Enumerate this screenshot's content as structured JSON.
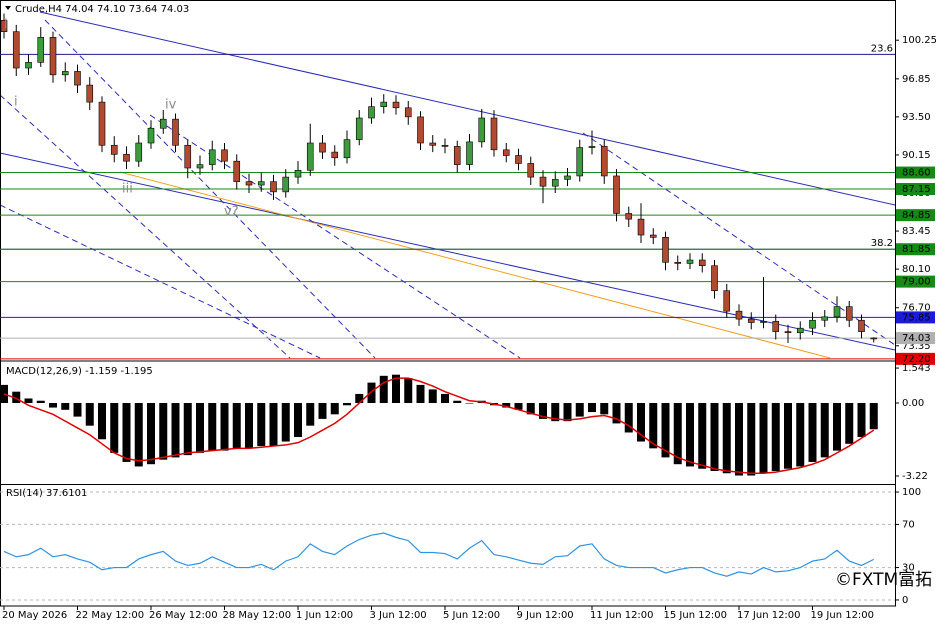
{
  "chart_data": [
    {
      "type": "candlestick",
      "title": "Crude,H4  74.04 74.10 73.64 74.03",
      "up_color": "#3c9c3c",
      "down_color": "#b04a30",
      "open": [
        102,
        101,
        97.8,
        98.3,
        100.5,
        97.2,
        97.5,
        96.3,
        94.8,
        91,
        90.2,
        89.6,
        91.2,
        92.5,
        93.3,
        91,
        89,
        89.3,
        90.6,
        89.6,
        87.8,
        87.5,
        87.8,
        86.9,
        88.2,
        88.8,
        91.2,
        90.4,
        89.9,
        91.5,
        93.4,
        94.4,
        94.8,
        94.3,
        93.5,
        91.2,
        91,
        90.9,
        89.3,
        91.3,
        93.4,
        90.6,
        90.1,
        89.4,
        88.2,
        87.4,
        88,
        88.3,
        90.8,
        90.9,
        88.3,
        85,
        84.5,
        83.1,
        82.9,
        80.7,
        80.6,
        80.9,
        80.4,
        78.2,
        76.4,
        75.7,
        75.4,
        75.5,
        74.6,
        74.5,
        74.9,
        75.6,
        75.9,
        76.8,
        75.6,
        74.04
      ],
      "high": [
        102.6,
        101.6,
        99,
        101.4,
        101,
        98.3,
        98.1,
        97,
        95.3,
        91.8,
        90.9,
        91.9,
        93.2,
        94.1,
        93.8,
        91.5,
        90.1,
        91.4,
        91.2,
        90.2,
        88.5,
        88.6,
        88.4,
        88.9,
        89.6,
        92.9,
        91.9,
        91,
        92.3,
        94.1,
        95.2,
        95.5,
        95.4,
        94.9,
        94,
        91.9,
        91.6,
        91.4,
        92,
        94.2,
        94.1,
        91.2,
        90.7,
        90,
        88.8,
        88.7,
        89,
        91.5,
        92.3,
        91.5,
        88.9,
        85.6,
        85.9,
        83.7,
        83.4,
        81.3,
        81.5,
        81.5,
        80.9,
        78.8,
        77,
        76.3,
        79.4,
        76.1,
        75.2,
        75.5,
        76.3,
        76.5,
        77.7,
        77.3,
        76.1,
        74.1
      ],
      "low": [
        100.4,
        97.1,
        97.2,
        97.9,
        96.5,
        96.6,
        95.6,
        94.1,
        90.4,
        89.5,
        88.9,
        89.1,
        90.7,
        92,
        90.4,
        88.1,
        88.4,
        88.8,
        88.9,
        87.1,
        86.8,
        86.9,
        86.2,
        86.4,
        87.6,
        88.3,
        89.8,
        89.2,
        89.4,
        91,
        92.9,
        93.8,
        93.7,
        92.8,
        90.6,
        90.4,
        90.3,
        88.6,
        88.8,
        90.8,
        90,
        89.5,
        88.8,
        87.5,
        85.9,
        86.8,
        87.4,
        87.8,
        90.2,
        87.6,
        84.3,
        83.8,
        82.4,
        82.3,
        80,
        80,
        80.1,
        79.8,
        77.5,
        75.8,
        75.1,
        74.8,
        74.9,
        73.9,
        73.6,
        73.9,
        74.3,
        75,
        75.4,
        75,
        74,
        73.64
      ],
      "close": [
        101,
        97.8,
        98.3,
        100.5,
        97.2,
        97.5,
        96.3,
        94.8,
        91,
        90.2,
        89.6,
        91.2,
        92.5,
        93.3,
        91,
        89,
        89.3,
        90.6,
        89.6,
        87.8,
        87.5,
        87.8,
        86.9,
        88.2,
        88.8,
        91.2,
        90.4,
        89.9,
        91.5,
        93.4,
        94.4,
        94.8,
        94.3,
        93.5,
        91.2,
        91,
        90.9,
        89.3,
        91.3,
        93.4,
        90.6,
        90.1,
        89.4,
        88.2,
        87.4,
        88,
        88.3,
        90.8,
        90.9,
        88.3,
        85,
        84.5,
        83.1,
        82.9,
        80.7,
        80.6,
        80.9,
        80.4,
        78.2,
        76.4,
        75.7,
        75.4,
        75.5,
        74.6,
        74.5,
        74.9,
        75.6,
        75.9,
        76.8,
        75.6,
        74.6,
        74.03
      ],
      "ylim": [
        72.1,
        103.7
      ],
      "yticks": [
        100.25,
        96.85,
        {
          "value": 93.5,
          "label": "93.50"
        },
        90.15,
        {
          "value": 86.8,
          "label": "86.80"
        },
        83.45,
        {
          "value": 80.1,
          "label": "80.10"
        },
        {
          "value": 76.7,
          "label": "76.70"
        },
        73.35
      ],
      "fib_levels": [
        {
          "value": 99.0,
          "label": "23.6",
          "color": "#1c1c8c"
        },
        {
          "value": 81.85,
          "label": "38.2",
          "color": "#1c1c8c"
        }
      ],
      "levels": [
        {
          "value": 88.6,
          "label": "88.60",
          "color": "#168a16"
        },
        {
          "value": 87.15,
          "label": "87.15",
          "color": "#168a16"
        },
        {
          "value": 84.85,
          "label": "84.85",
          "color": "#168a16"
        },
        {
          "value": 81.85,
          "label": "81.85",
          "color": "#168a16"
        },
        {
          "value": 79.0,
          "label": "79.00",
          "color": "#168a16"
        },
        {
          "value": 75.85,
          "label": "75.85",
          "color": "#1c1cd6"
        },
        {
          "value": 74.03,
          "label": "74.03",
          "color": "#b0b0b0",
          "label_color": "#000000"
        },
        {
          "value": 72.2,
          "label": "72.20",
          "color": "#e00000"
        }
      ],
      "annotations": [
        "I",
        "i",
        "iv",
        "iii",
        "v?"
      ],
      "xticks": [
        {
          "value": 0,
          "label": "20 May 2026"
        },
        {
          "value": 6,
          "label": "22 May 12:00"
        },
        {
          "value": 12,
          "label": "26 May 12:00"
        },
        {
          "value": 18,
          "label": "28 May 12:00"
        },
        {
          "value": 24,
          "label": "1 Jun 12:00"
        },
        {
          "value": 30,
          "label": "3 Jun 12:00"
        },
        {
          "value": 36,
          "label": "5 Jun 12:00"
        },
        {
          "value": 42,
          "label": "9 Jun 12:00"
        },
        {
          "value": 48,
          "label": "11 Jun 12:00"
        },
        {
          "value": 54,
          "label": "15 Jun 12:00"
        },
        {
          "value": 60,
          "label": "17 Jun 12:00"
        },
        {
          "value": 66,
          "label": "19 Jun 12:00"
        }
      ]
    },
    {
      "type": "macd",
      "title": "MACD(12,26,9) -1.159 -1.195",
      "color": "#000000",
      "signal_color": "#e00000",
      "values": [
        0.8,
        0.5,
        0.2,
        0.1,
        -0.2,
        -0.3,
        -0.6,
        -1.0,
        -1.6,
        -2.2,
        -2.6,
        -2.8,
        -2.7,
        -2.5,
        -2.4,
        -2.3,
        -2.2,
        -2.1,
        -2.1,
        -2.0,
        -2.0,
        -1.9,
        -1.9,
        -1.7,
        -1.5,
        -1.0,
        -0.7,
        -0.5,
        -0.1,
        0.4,
        0.9,
        1.2,
        1.25,
        1.1,
        0.8,
        0.6,
        0.4,
        0.1,
        0.0,
        0.1,
        -0.1,
        -0.2,
        -0.3,
        -0.5,
        -0.7,
        -0.8,
        -0.8,
        -0.6,
        -0.4,
        -0.5,
        -0.9,
        -1.3,
        -1.7,
        -2.0,
        -2.4,
        -2.7,
        -2.8,
        -2.9,
        -3.0,
        -3.1,
        -3.2,
        -3.2,
        -3.1,
        -3.0,
        -2.9,
        -2.8,
        -2.6,
        -2.4,
        -2.1,
        -1.8,
        -1.5,
        -1.159
      ],
      "signal_values": [
        0.4,
        0.2,
        -0.1,
        -0.3,
        -0.5,
        -0.8,
        -1.1,
        -1.4,
        -1.8,
        -2.2,
        -2.45,
        -2.55,
        -2.5,
        -2.4,
        -2.3,
        -2.2,
        -2.15,
        -2.1,
        -2.05,
        -2.0,
        -2.0,
        -1.95,
        -1.9,
        -1.85,
        -1.75,
        -1.5,
        -1.2,
        -0.9,
        -0.5,
        0.0,
        0.5,
        0.9,
        1.1,
        1.1,
        0.95,
        0.75,
        0.5,
        0.3,
        0.1,
        0.05,
        -0.05,
        -0.15,
        -0.3,
        -0.45,
        -0.6,
        -0.7,
        -0.75,
        -0.7,
        -0.6,
        -0.55,
        -0.7,
        -1.0,
        -1.4,
        -1.8,
        -2.1,
        -2.4,
        -2.6,
        -2.75,
        -2.9,
        -3.0,
        -3.05,
        -3.1,
        -3.1,
        -3.05,
        -2.95,
        -2.85,
        -2.7,
        -2.5,
        -2.2,
        -1.9,
        -1.55,
        -1.195
      ],
      "ylim": [
        -3.53,
        1.81
      ],
      "yticks": [
        1.543,
        {
          "value": 0,
          "label": "0.00"
        },
        -3.22
      ]
    },
    {
      "type": "line",
      "title": "RSI(14) 37.6101",
      "color": "#2f93e0",
      "values": [
        45,
        40,
        42,
        48,
        40,
        42,
        38,
        35,
        28,
        30,
        30,
        38,
        42,
        45,
        36,
        32,
        34,
        40,
        35,
        30,
        30,
        33,
        28,
        36,
        40,
        52,
        45,
        42,
        50,
        56,
        60,
        62,
        58,
        55,
        44,
        44,
        43,
        38,
        48,
        55,
        42,
        40,
        37,
        34,
        33,
        40,
        41,
        50,
        52,
        38,
        32,
        30,
        30,
        30,
        25,
        28,
        30,
        30,
        25,
        22,
        26,
        24,
        30,
        26,
        27,
        30,
        36,
        38,
        46,
        36,
        32,
        37.6101
      ],
      "ylim": [
        -5.6,
        105.6
      ],
      "yticks": [
        100,
        70,
        30,
        0
      ],
      "grid": true
    }
  ],
  "watermark": "©FXTM富拓"
}
